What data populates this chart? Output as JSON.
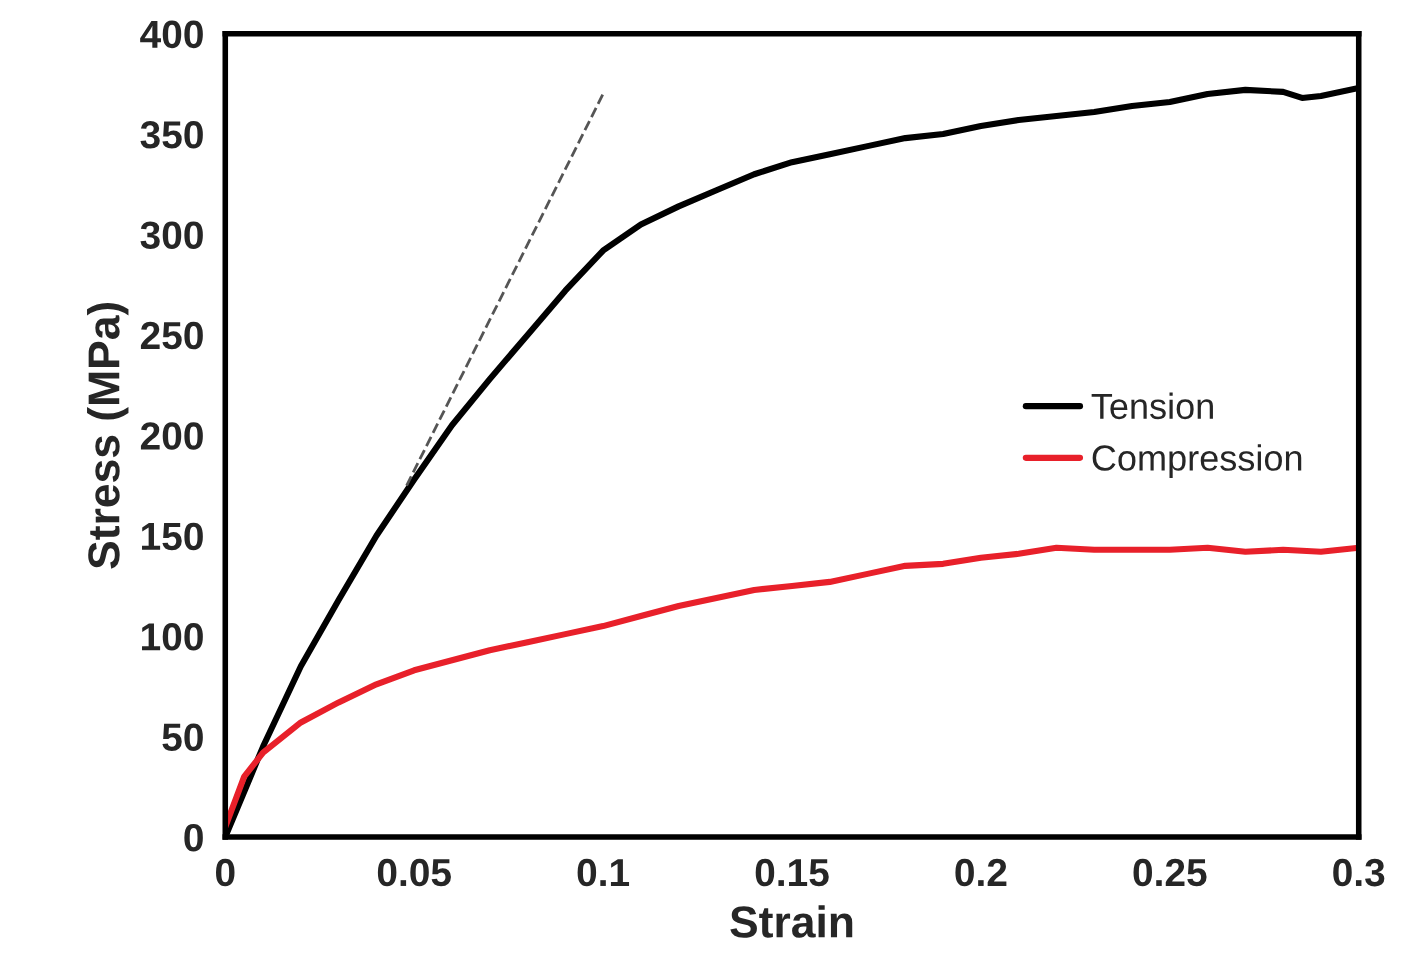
{
  "chart_data": {
    "type": "line",
    "xlabel": "Strain",
    "ylabel": "Stress (MPa)",
    "xlim": [
      0,
      0.3
    ],
    "ylim": [
      0,
      400
    ],
    "xticks": [
      0,
      0.05,
      0.1,
      0.15,
      0.2,
      0.25,
      0.3
    ],
    "yticks": [
      0,
      50,
      100,
      150,
      200,
      250,
      300,
      350,
      400
    ],
    "grid": false,
    "legend": "right",
    "marker": "none",
    "series": [
      {
        "name": "Tension",
        "color": "#000000",
        "x": [
          0,
          0.01,
          0.02,
          0.03,
          0.04,
          0.05,
          0.06,
          0.07,
          0.08,
          0.09,
          0.1,
          0.11,
          0.12,
          0.13,
          0.14,
          0.15,
          0.16,
          0.17,
          0.18,
          0.19,
          0.2,
          0.21,
          0.22,
          0.23,
          0.24,
          0.25,
          0.26,
          0.27,
          0.28,
          0.285,
          0.29,
          0.3
        ],
        "values": [
          0,
          45,
          85,
          118,
          150,
          178,
          205,
          228,
          250,
          272,
          292,
          305,
          314,
          322,
          330,
          336,
          340,
          344,
          348,
          350,
          354,
          357,
          359,
          361,
          364,
          366,
          370,
          372,
          371,
          368,
          369,
          373
        ]
      },
      {
        "name": "Compression",
        "color": "#e8202a",
        "x": [
          0,
          0.005,
          0.01,
          0.02,
          0.03,
          0.04,
          0.05,
          0.06,
          0.07,
          0.08,
          0.09,
          0.1,
          0.11,
          0.12,
          0.13,
          0.14,
          0.15,
          0.16,
          0.17,
          0.18,
          0.19,
          0.2,
          0.21,
          0.22,
          0.23,
          0.24,
          0.25,
          0.26,
          0.27,
          0.28,
          0.29,
          0.3
        ],
        "values": [
          5,
          30,
          42,
          57,
          67,
          76,
          83,
          88,
          93,
          97,
          101,
          105,
          110,
          115,
          119,
          123,
          125,
          127,
          131,
          135,
          136,
          139,
          141,
          144,
          143,
          143,
          143,
          144,
          142,
          143,
          142,
          144
        ]
      },
      {
        "type": "line",
        "line_style": "dashed",
        "color": "#555555",
        "x": [
          0.048,
          0.1
        ],
        "values": [
          175,
          370
        ]
      }
    ]
  }
}
